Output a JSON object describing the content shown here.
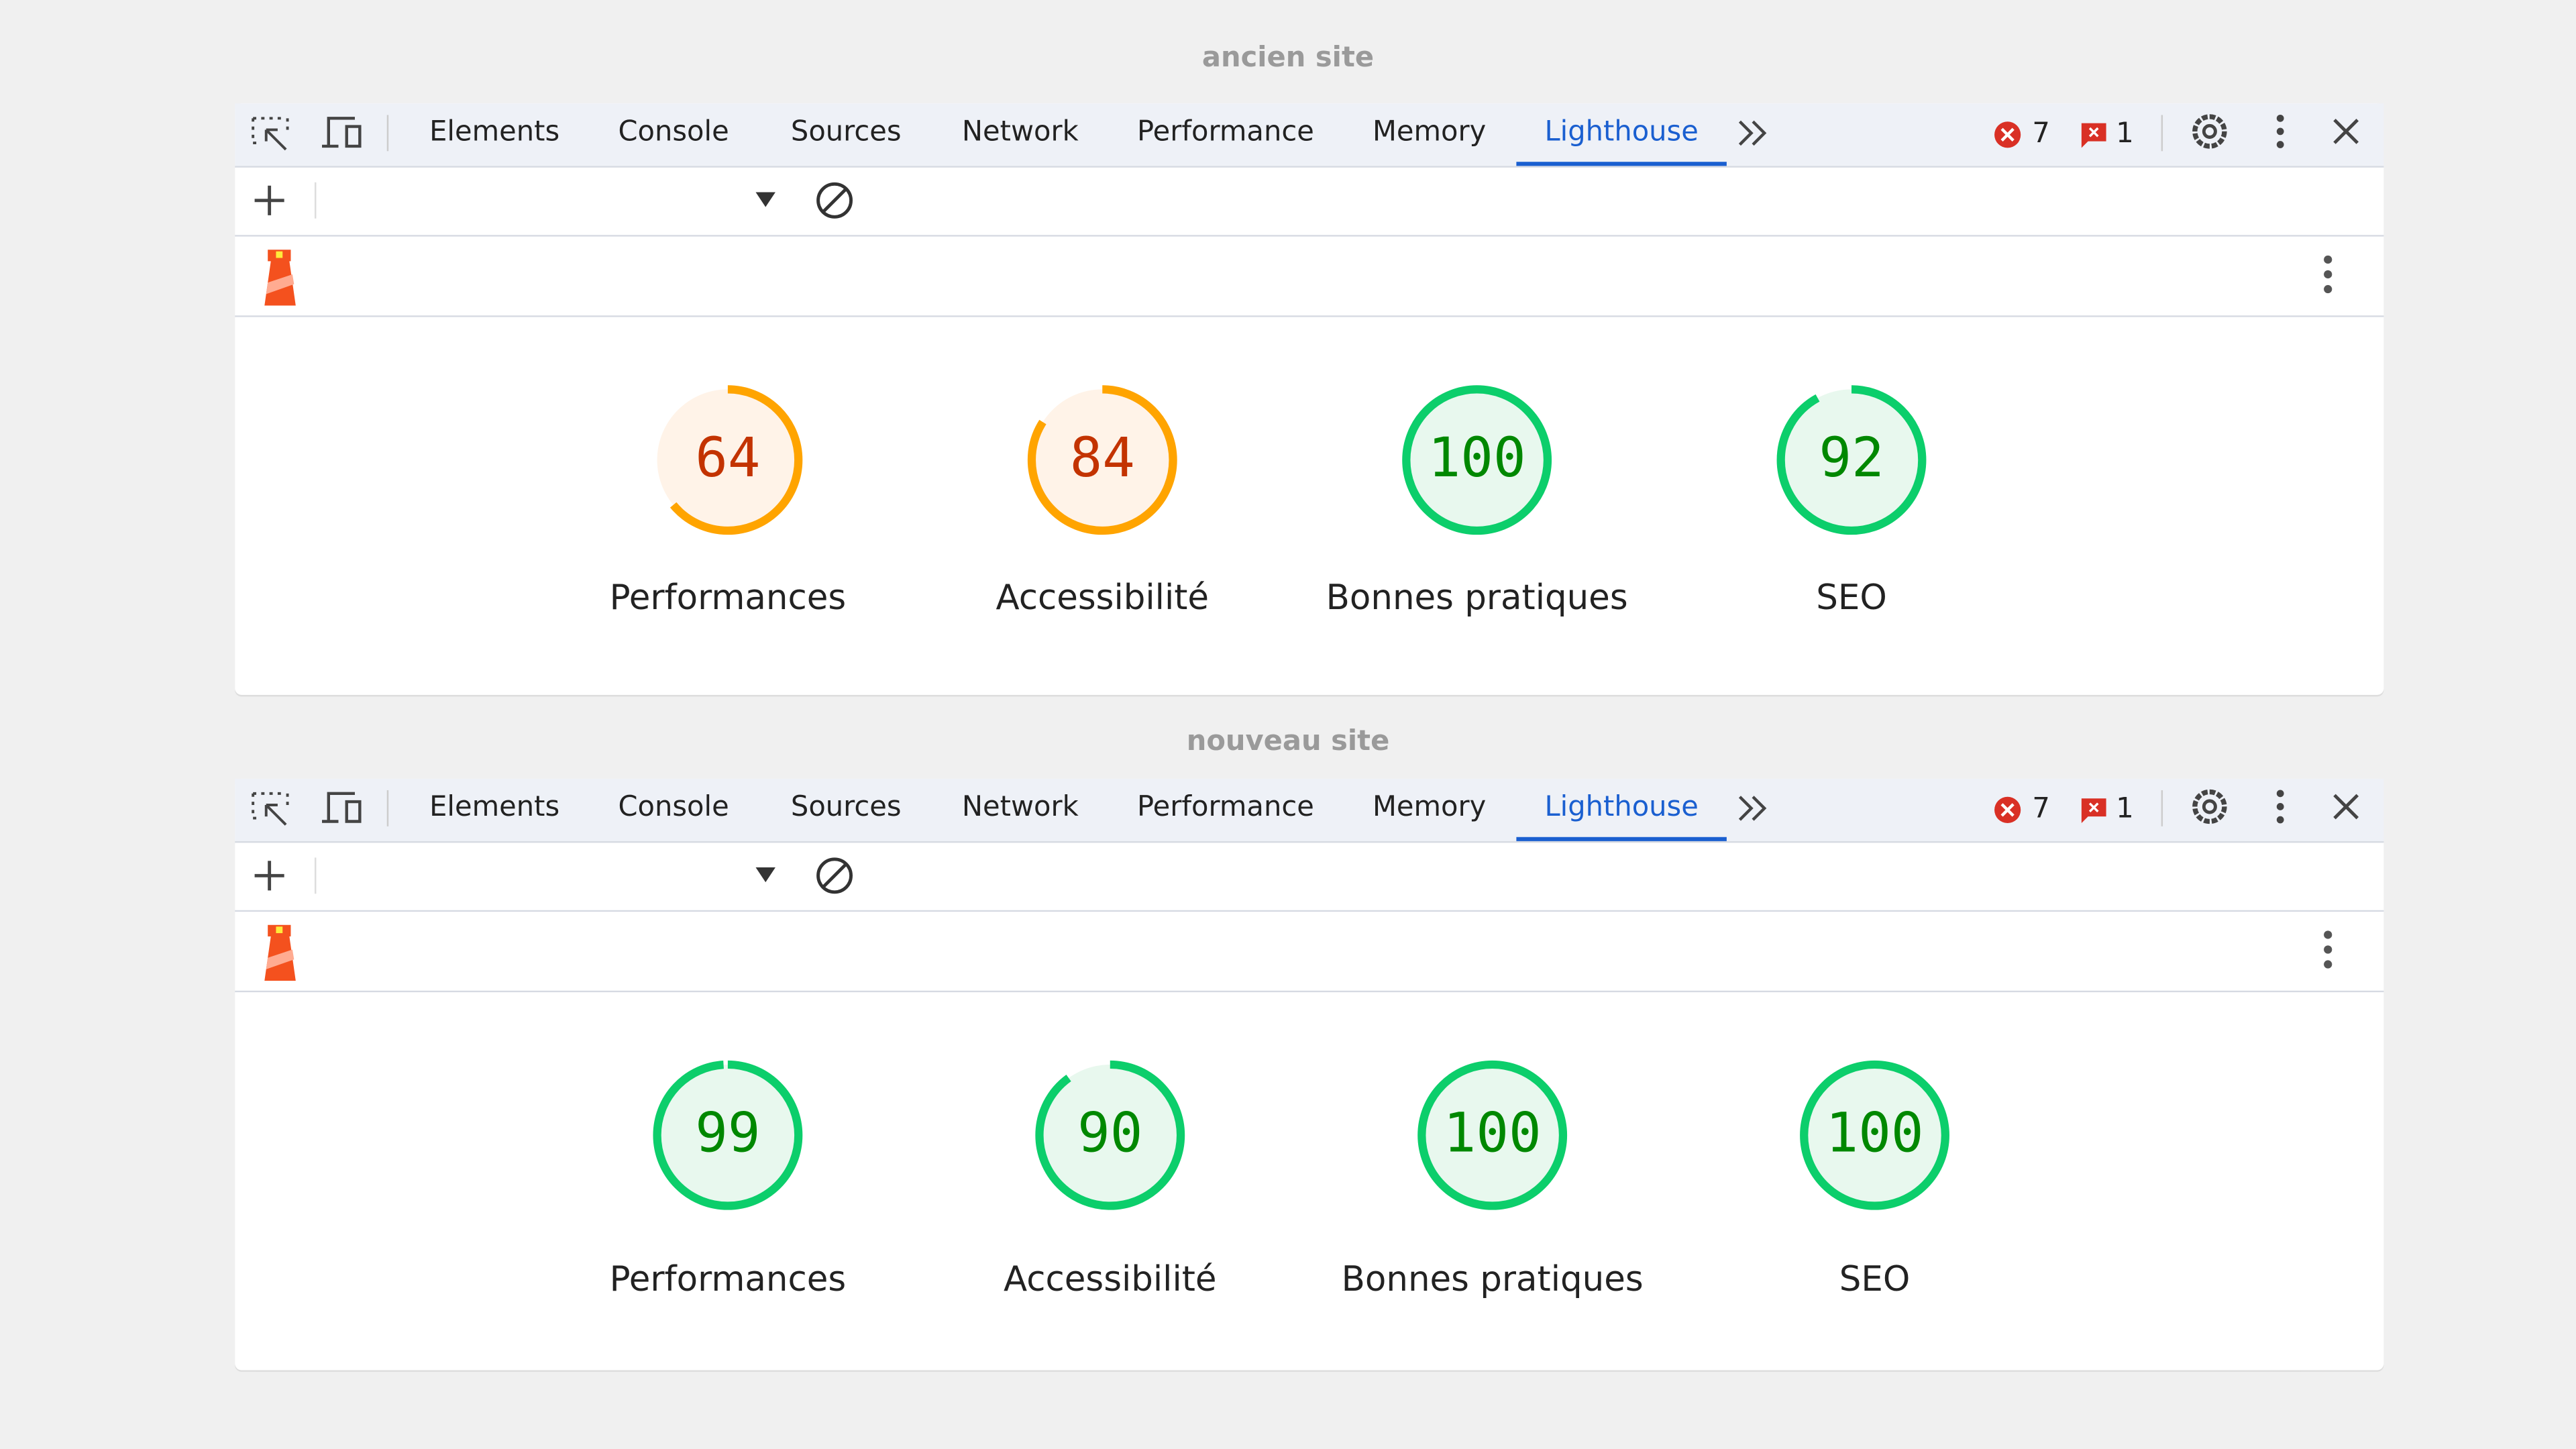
{
  "panels": [
    {
      "label": "ancien site",
      "tabs": [
        {
          "label": "Elements",
          "active": false
        },
        {
          "label": "Console",
          "active": false
        },
        {
          "label": "Sources",
          "active": false
        },
        {
          "label": "Network",
          "active": false
        },
        {
          "label": "Performance",
          "active": false
        },
        {
          "label": "Memory",
          "active": false
        },
        {
          "label": "Lighthouse",
          "active": true
        }
      ],
      "errors": 7,
      "issues": 1,
      "scores": [
        {
          "label": "Performances",
          "value": 64
        },
        {
          "label": "Accessibilité",
          "value": 84
        },
        {
          "label": "Bonnes pratiques",
          "value": 100
        },
        {
          "label": "SEO",
          "value": 92
        }
      ]
    },
    {
      "label": "nouveau site",
      "tabs": [
        {
          "label": "Elements",
          "active": false
        },
        {
          "label": "Console",
          "active": false
        },
        {
          "label": "Sources",
          "active": false
        },
        {
          "label": "Network",
          "active": false
        },
        {
          "label": "Performance",
          "active": false
        },
        {
          "label": "Memory",
          "active": false
        },
        {
          "label": "Lighthouse",
          "active": true
        }
      ],
      "errors": 7,
      "issues": 1,
      "scores": [
        {
          "label": "Performances",
          "value": 99
        },
        {
          "label": "Accessibilité",
          "value": 90
        },
        {
          "label": "Bonnes pratiques",
          "value": 100
        },
        {
          "label": "SEO",
          "value": 100
        }
      ]
    }
  ]
}
